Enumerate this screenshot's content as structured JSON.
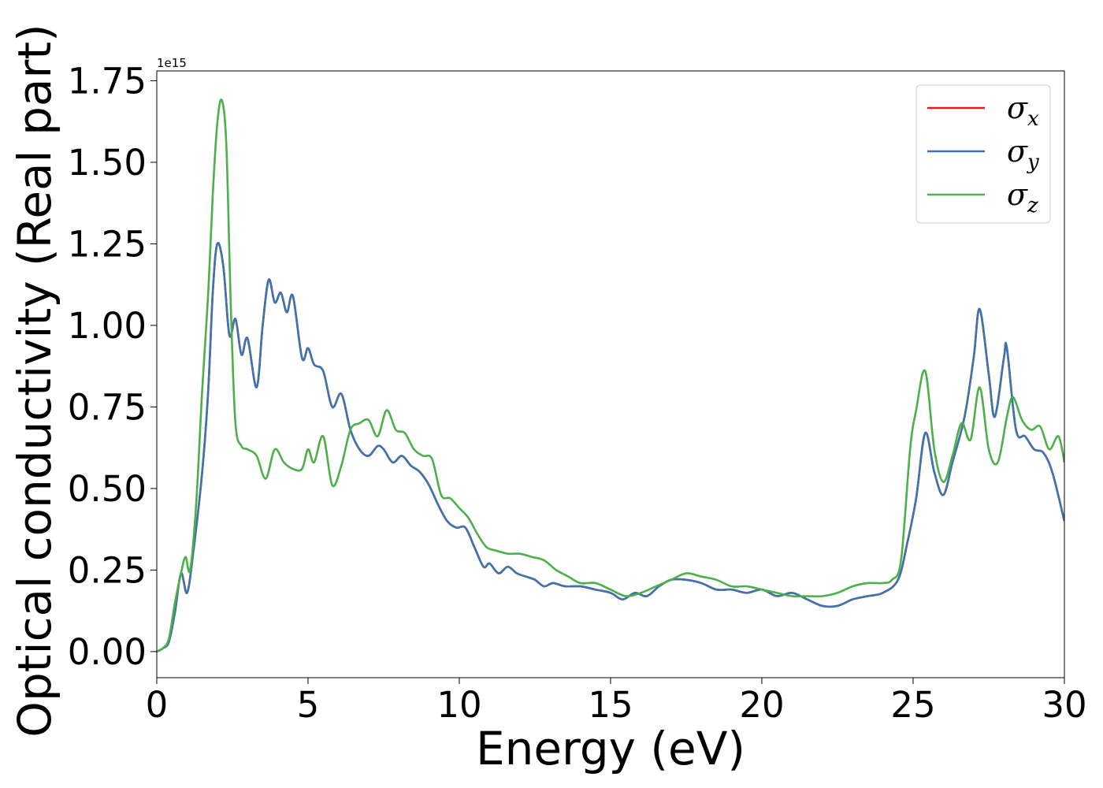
{
  "chart_data": {
    "type": "line",
    "title": "",
    "xlabel": "Energy (eV)",
    "ylabel": "Optical conductivity (Real part)",
    "y_offset_text": "1e15",
    "xlim": [
      0,
      30
    ],
    "ylim": [
      -0.08,
      1.78
    ],
    "x_ticks": [
      0,
      5,
      10,
      15,
      20,
      25,
      30
    ],
    "x_tick_labels": [
      "0",
      "5",
      "10",
      "15",
      "20",
      "25",
      "30"
    ],
    "y_ticks": [
      0,
      0.25,
      0.5,
      0.75,
      1.0,
      1.25,
      1.5,
      1.75
    ],
    "y_tick_labels": [
      "0.00",
      "0.25",
      "0.50",
      "0.75",
      "1.00",
      "1.25",
      "1.50",
      "1.75"
    ],
    "grid": false,
    "legend_position": "top-right",
    "series": [
      {
        "name": "σ_x",
        "legend_main": "σ",
        "legend_sub": "x",
        "color": "#e41a1c",
        "points": [
          [
            0,
            0
          ],
          [
            0.2,
            0.01
          ],
          [
            0.4,
            0.03
          ],
          [
            0.6,
            0.12
          ],
          [
            0.8,
            0.24
          ],
          [
            1.0,
            0.18
          ],
          [
            1.2,
            0.3
          ],
          [
            1.5,
            0.55
          ],
          [
            1.7,
            0.8
          ],
          [
            1.85,
            1.1
          ],
          [
            2.0,
            1.25
          ],
          [
            2.2,
            1.18
          ],
          [
            2.4,
            0.97
          ],
          [
            2.6,
            1.02
          ],
          [
            2.8,
            0.91
          ],
          [
            3.0,
            0.96
          ],
          [
            3.3,
            0.81
          ],
          [
            3.5,
            1.0
          ],
          [
            3.7,
            1.14
          ],
          [
            3.9,
            1.07
          ],
          [
            4.1,
            1.1
          ],
          [
            4.3,
            1.04
          ],
          [
            4.5,
            1.09
          ],
          [
            4.8,
            0.9
          ],
          [
            5.0,
            0.93
          ],
          [
            5.2,
            0.88
          ],
          [
            5.5,
            0.86
          ],
          [
            5.8,
            0.75
          ],
          [
            6.1,
            0.79
          ],
          [
            6.4,
            0.68
          ],
          [
            6.7,
            0.62
          ],
          [
            7.0,
            0.6
          ],
          [
            7.3,
            0.63
          ],
          [
            7.5,
            0.62
          ],
          [
            7.8,
            0.58
          ],
          [
            8.1,
            0.6
          ],
          [
            8.4,
            0.57
          ],
          [
            8.7,
            0.55
          ],
          [
            9.0,
            0.51
          ],
          [
            9.3,
            0.45
          ],
          [
            9.6,
            0.4
          ],
          [
            9.9,
            0.38
          ],
          [
            10.2,
            0.38
          ],
          [
            10.5,
            0.32
          ],
          [
            10.8,
            0.26
          ],
          [
            11.0,
            0.27
          ],
          [
            11.3,
            0.24
          ],
          [
            11.6,
            0.26
          ],
          [
            11.9,
            0.24
          ],
          [
            12.2,
            0.23
          ],
          [
            12.5,
            0.22
          ],
          [
            12.8,
            0.2
          ],
          [
            13.1,
            0.21
          ],
          [
            13.5,
            0.2
          ],
          [
            14.0,
            0.2
          ],
          [
            14.5,
            0.19
          ],
          [
            15.0,
            0.18
          ],
          [
            15.4,
            0.16
          ],
          [
            15.8,
            0.18
          ],
          [
            16.2,
            0.17
          ],
          [
            16.6,
            0.2
          ],
          [
            17.0,
            0.22
          ],
          [
            17.5,
            0.22
          ],
          [
            18.0,
            0.21
          ],
          [
            18.5,
            0.19
          ],
          [
            19.0,
            0.19
          ],
          [
            19.5,
            0.18
          ],
          [
            20.0,
            0.19
          ],
          [
            20.5,
            0.17
          ],
          [
            21.0,
            0.18
          ],
          [
            21.5,
            0.16
          ],
          [
            22.0,
            0.14
          ],
          [
            22.5,
            0.14
          ],
          [
            23.0,
            0.16
          ],
          [
            23.5,
            0.17
          ],
          [
            24.0,
            0.18
          ],
          [
            24.5,
            0.22
          ],
          [
            24.8,
            0.33
          ],
          [
            25.1,
            0.47
          ],
          [
            25.4,
            0.67
          ],
          [
            25.7,
            0.55
          ],
          [
            26.0,
            0.48
          ],
          [
            26.3,
            0.58
          ],
          [
            26.7,
            0.72
          ],
          [
            27.0,
            0.9
          ],
          [
            27.2,
            1.05
          ],
          [
            27.5,
            0.85
          ],
          [
            27.7,
            0.72
          ],
          [
            28.0,
            0.9
          ],
          [
            28.1,
            0.93
          ],
          [
            28.4,
            0.68
          ],
          [
            28.7,
            0.66
          ],
          [
            29.0,
            0.62
          ],
          [
            29.3,
            0.61
          ],
          [
            29.6,
            0.55
          ],
          [
            30.0,
            0.4
          ]
        ]
      },
      {
        "name": "σ_y",
        "legend_main": "σ",
        "legend_sub": "y",
        "color": "#3b75af",
        "points": [
          [
            0,
            0
          ],
          [
            0.2,
            0.01
          ],
          [
            0.4,
            0.03
          ],
          [
            0.6,
            0.12
          ],
          [
            0.8,
            0.24
          ],
          [
            1.0,
            0.18
          ],
          [
            1.2,
            0.3
          ],
          [
            1.5,
            0.55
          ],
          [
            1.7,
            0.8
          ],
          [
            1.85,
            1.1
          ],
          [
            2.0,
            1.25
          ],
          [
            2.2,
            1.18
          ],
          [
            2.4,
            0.97
          ],
          [
            2.6,
            1.02
          ],
          [
            2.8,
            0.91
          ],
          [
            3.0,
            0.96
          ],
          [
            3.3,
            0.81
          ],
          [
            3.5,
            1.0
          ],
          [
            3.7,
            1.14
          ],
          [
            3.9,
            1.07
          ],
          [
            4.1,
            1.1
          ],
          [
            4.3,
            1.04
          ],
          [
            4.5,
            1.09
          ],
          [
            4.8,
            0.9
          ],
          [
            5.0,
            0.93
          ],
          [
            5.2,
            0.88
          ],
          [
            5.5,
            0.86
          ],
          [
            5.8,
            0.75
          ],
          [
            6.1,
            0.79
          ],
          [
            6.4,
            0.68
          ],
          [
            6.7,
            0.62
          ],
          [
            7.0,
            0.6
          ],
          [
            7.3,
            0.63
          ],
          [
            7.5,
            0.62
          ],
          [
            7.8,
            0.58
          ],
          [
            8.1,
            0.6
          ],
          [
            8.4,
            0.57
          ],
          [
            8.7,
            0.55
          ],
          [
            9.0,
            0.51
          ],
          [
            9.3,
            0.45
          ],
          [
            9.6,
            0.4
          ],
          [
            9.9,
            0.38
          ],
          [
            10.2,
            0.38
          ],
          [
            10.5,
            0.32
          ],
          [
            10.8,
            0.26
          ],
          [
            11.0,
            0.27
          ],
          [
            11.3,
            0.24
          ],
          [
            11.6,
            0.26
          ],
          [
            11.9,
            0.24
          ],
          [
            12.2,
            0.23
          ],
          [
            12.5,
            0.22
          ],
          [
            12.8,
            0.2
          ],
          [
            13.1,
            0.21
          ],
          [
            13.5,
            0.2
          ],
          [
            14.0,
            0.2
          ],
          [
            14.5,
            0.19
          ],
          [
            15.0,
            0.18
          ],
          [
            15.4,
            0.16
          ],
          [
            15.8,
            0.18
          ],
          [
            16.2,
            0.17
          ],
          [
            16.6,
            0.2
          ],
          [
            17.0,
            0.22
          ],
          [
            17.5,
            0.22
          ],
          [
            18.0,
            0.21
          ],
          [
            18.5,
            0.19
          ],
          [
            19.0,
            0.19
          ],
          [
            19.5,
            0.18
          ],
          [
            20.0,
            0.19
          ],
          [
            20.5,
            0.17
          ],
          [
            21.0,
            0.18
          ],
          [
            21.5,
            0.16
          ],
          [
            22.0,
            0.14
          ],
          [
            22.5,
            0.14
          ],
          [
            23.0,
            0.16
          ],
          [
            23.5,
            0.17
          ],
          [
            24.0,
            0.18
          ],
          [
            24.5,
            0.22
          ],
          [
            24.8,
            0.33
          ],
          [
            25.1,
            0.47
          ],
          [
            25.4,
            0.67
          ],
          [
            25.7,
            0.55
          ],
          [
            26.0,
            0.48
          ],
          [
            26.3,
            0.58
          ],
          [
            26.7,
            0.72
          ],
          [
            27.0,
            0.9
          ],
          [
            27.2,
            1.05
          ],
          [
            27.5,
            0.85
          ],
          [
            27.7,
            0.72
          ],
          [
            28.0,
            0.9
          ],
          [
            28.1,
            0.93
          ],
          [
            28.4,
            0.68
          ],
          [
            28.7,
            0.66
          ],
          [
            29.0,
            0.62
          ],
          [
            29.3,
            0.61
          ],
          [
            29.6,
            0.55
          ],
          [
            30.0,
            0.4
          ]
        ]
      },
      {
        "name": "σ_z",
        "legend_main": "σ",
        "legend_sub": "z",
        "color": "#4daf4a",
        "points": [
          [
            0,
            0
          ],
          [
            0.2,
            0.01
          ],
          [
            0.4,
            0.04
          ],
          [
            0.6,
            0.15
          ],
          [
            0.8,
            0.24
          ],
          [
            0.95,
            0.29
          ],
          [
            1.1,
            0.25
          ],
          [
            1.3,
            0.45
          ],
          [
            1.5,
            0.8
          ],
          [
            1.7,
            1.1
          ],
          [
            1.85,
            1.4
          ],
          [
            2.0,
            1.62
          ],
          [
            2.15,
            1.69
          ],
          [
            2.3,
            1.55
          ],
          [
            2.45,
            1.05
          ],
          [
            2.6,
            0.7
          ],
          [
            2.8,
            0.63
          ],
          [
            3.0,
            0.62
          ],
          [
            3.3,
            0.6
          ],
          [
            3.6,
            0.53
          ],
          [
            3.9,
            0.62
          ],
          [
            4.2,
            0.58
          ],
          [
            4.5,
            0.56
          ],
          [
            4.8,
            0.56
          ],
          [
            5.0,
            0.62
          ],
          [
            5.2,
            0.58
          ],
          [
            5.5,
            0.66
          ],
          [
            5.8,
            0.51
          ],
          [
            6.1,
            0.57
          ],
          [
            6.4,
            0.68
          ],
          [
            6.7,
            0.7
          ],
          [
            7.0,
            0.71
          ],
          [
            7.3,
            0.66
          ],
          [
            7.6,
            0.74
          ],
          [
            7.9,
            0.68
          ],
          [
            8.2,
            0.67
          ],
          [
            8.5,
            0.62
          ],
          [
            8.8,
            0.6
          ],
          [
            9.1,
            0.59
          ],
          [
            9.4,
            0.48
          ],
          [
            9.7,
            0.47
          ],
          [
            10.0,
            0.44
          ],
          [
            10.3,
            0.41
          ],
          [
            10.6,
            0.36
          ],
          [
            10.9,
            0.32
          ],
          [
            11.2,
            0.31
          ],
          [
            11.6,
            0.3
          ],
          [
            12.0,
            0.3
          ],
          [
            12.4,
            0.29
          ],
          [
            12.8,
            0.28
          ],
          [
            13.2,
            0.25
          ],
          [
            13.6,
            0.23
          ],
          [
            14.0,
            0.21
          ],
          [
            14.5,
            0.21
          ],
          [
            15.0,
            0.19
          ],
          [
            15.5,
            0.17
          ],
          [
            16.0,
            0.18
          ],
          [
            16.5,
            0.2
          ],
          [
            17.0,
            0.22
          ],
          [
            17.5,
            0.24
          ],
          [
            18.0,
            0.23
          ],
          [
            18.5,
            0.22
          ],
          [
            19.0,
            0.2
          ],
          [
            19.5,
            0.2
          ],
          [
            20.0,
            0.19
          ],
          [
            20.5,
            0.18
          ],
          [
            21.0,
            0.17
          ],
          [
            21.5,
            0.17
          ],
          [
            22.0,
            0.17
          ],
          [
            22.5,
            0.18
          ],
          [
            23.0,
            0.2
          ],
          [
            23.5,
            0.21
          ],
          [
            24.0,
            0.21
          ],
          [
            24.3,
            0.22
          ],
          [
            24.6,
            0.28
          ],
          [
            24.9,
            0.62
          ],
          [
            25.1,
            0.74
          ],
          [
            25.4,
            0.86
          ],
          [
            25.7,
            0.62
          ],
          [
            26.0,
            0.52
          ],
          [
            26.3,
            0.6
          ],
          [
            26.6,
            0.7
          ],
          [
            26.9,
            0.65
          ],
          [
            27.2,
            0.81
          ],
          [
            27.5,
            0.62
          ],
          [
            27.8,
            0.58
          ],
          [
            28.1,
            0.72
          ],
          [
            28.3,
            0.78
          ],
          [
            28.6,
            0.71
          ],
          [
            28.9,
            0.68
          ],
          [
            29.2,
            0.69
          ],
          [
            29.5,
            0.62
          ],
          [
            29.8,
            0.66
          ],
          [
            30.0,
            0.58
          ]
        ]
      }
    ]
  }
}
